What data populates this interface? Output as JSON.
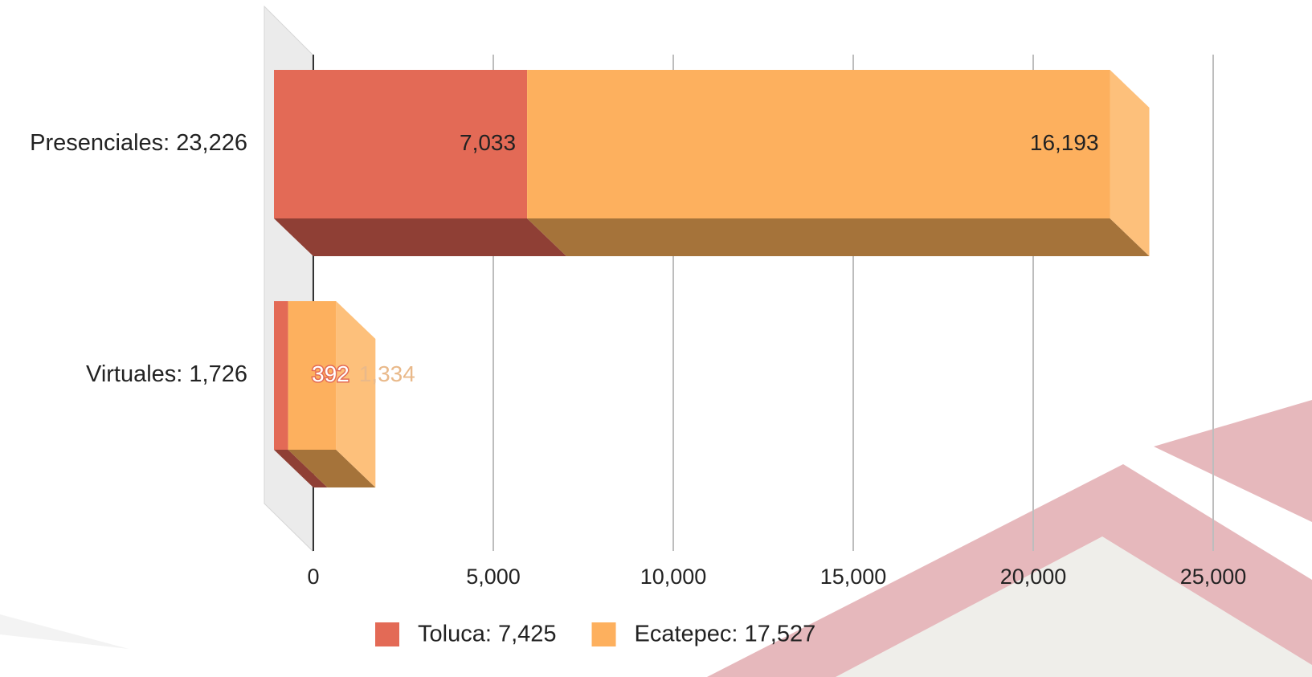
{
  "chart_data": {
    "type": "bar3d",
    "orientation": "horizontal",
    "stacked": true,
    "categories": [
      "Presenciales: 23,226",
      "Virtuales: 1,726"
    ],
    "series": [
      {
        "name": "Toluca: 7,425",
        "color": "#e36a56",
        "side_color": "#8f3f35",
        "values": [
          7033,
          392
        ],
        "value_labels": [
          "7,033",
          "392"
        ]
      },
      {
        "name": "Ecatepec: 17,527",
        "color": "#fdb05e",
        "side_color": "#a5733a",
        "end_color": "#fdc07b",
        "values": [
          16193,
          1334
        ],
        "value_labels": [
          "16,193",
          "1,334"
        ]
      }
    ],
    "xlim": [
      0,
      25000
    ],
    "xticks": [
      0,
      {
        "value": 5000,
        "label": "5,000"
      },
      {
        "value": 10000,
        "label": "10,000"
      },
      {
        "value": 15000,
        "label": "15,000"
      },
      {
        "value": 20000,
        "label": "20,000"
      },
      {
        "value": 25000,
        "label": "25,000"
      }
    ],
    "grid": true,
    "legend": "bottom"
  }
}
